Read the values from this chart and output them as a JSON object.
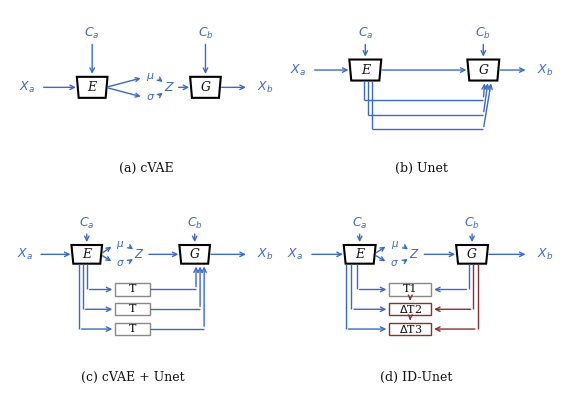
{
  "blue": "#3B6AC6",
  "red": "#8B3030",
  "black": "#111111",
  "gray": "#888888",
  "bg": "#ffffff",
  "captions": [
    "(a) cVAE",
    "(b) Unet",
    "(c) cVAE + Unet",
    "(d) ID-Unet"
  ]
}
